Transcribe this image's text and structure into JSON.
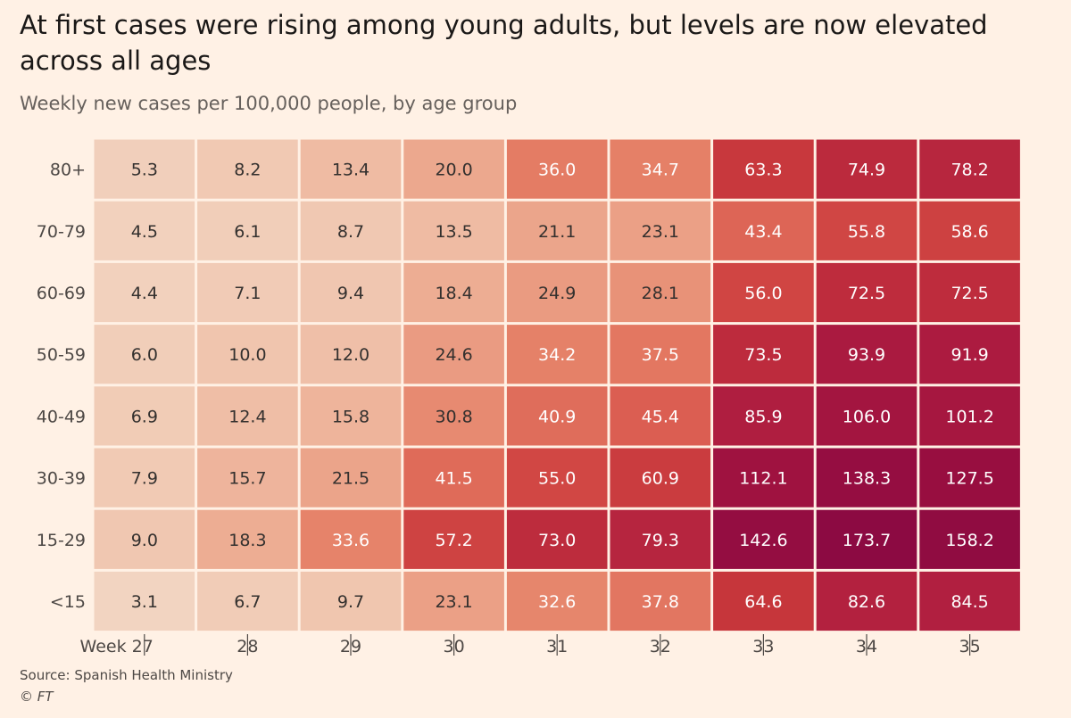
{
  "title": "At first cases were rising among young adults, but levels are now elevated across all ages",
  "subtitle": "Weekly new cases per 100,000 people, by age group",
  "source": "Source: Spanish Health Ministry",
  "copyright": "© FT",
  "chart_data": {
    "type": "heatmap",
    "x_tick_labels": [
      "Week 27",
      "28",
      "29",
      "30",
      "31",
      "32",
      "33",
      "34",
      "35"
    ],
    "rows": [
      "80+",
      "70-79",
      "60-69",
      "50-59",
      "40-49",
      "30-39",
      "15-29",
      "<15"
    ],
    "values": [
      [
        5.3,
        8.2,
        13.4,
        20.0,
        36.0,
        34.7,
        63.3,
        74.9,
        78.2
      ],
      [
        4.5,
        6.1,
        8.7,
        13.5,
        21.1,
        23.1,
        43.4,
        55.8,
        58.6
      ],
      [
        4.4,
        7.1,
        9.4,
        18.4,
        24.9,
        28.1,
        56.0,
        72.5,
        72.5
      ],
      [
        6.0,
        10.0,
        12.0,
        24.6,
        34.2,
        37.5,
        73.5,
        93.9,
        91.9
      ],
      [
        6.9,
        12.4,
        15.8,
        30.8,
        40.9,
        45.4,
        85.9,
        106.0,
        101.2
      ],
      [
        7.9,
        15.7,
        21.5,
        41.5,
        55.0,
        60.9,
        112.1,
        138.3,
        127.5
      ],
      [
        9.0,
        18.3,
        33.6,
        57.2,
        73.0,
        79.3,
        142.6,
        173.7,
        158.2
      ],
      [
        3.1,
        6.7,
        9.7,
        23.1,
        32.6,
        37.8,
        64.6,
        82.6,
        84.5
      ]
    ],
    "color_scale": [
      {
        "value": 0,
        "color": "#f3dbc9"
      },
      {
        "value": 10,
        "color": "#f0c5ae"
      },
      {
        "value": 20,
        "color": "#eca88e"
      },
      {
        "value": 35,
        "color": "#e57f66"
      },
      {
        "value": 50,
        "color": "#d65049"
      },
      {
        "value": 65,
        "color": "#c6353b"
      },
      {
        "value": 85,
        "color": "#b01e40"
      },
      {
        "value": 120,
        "color": "#9a0f40"
      },
      {
        "value": 175,
        "color": "#8c0a42"
      }
    ],
    "text_colors": {
      "dark": "#33302e",
      "light": "#ffffff"
    }
  }
}
